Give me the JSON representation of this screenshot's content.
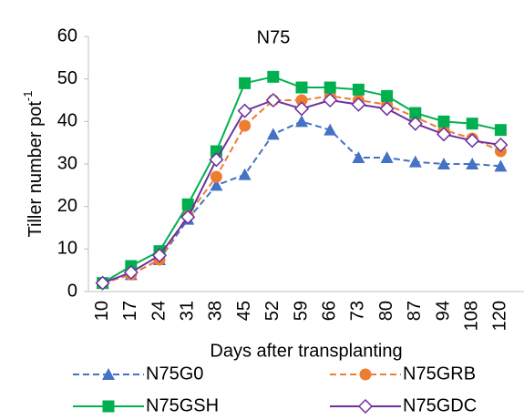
{
  "chart_data": {
    "type": "line",
    "title": "N75",
    "x_label": "Days after transplanting",
    "y_label": "Tiller number pot",
    "y_label_superscript": "-1",
    "categories": [
      "10",
      "17",
      "24",
      "31",
      "38",
      "45",
      "52",
      "59",
      "66",
      "73",
      "80",
      "87",
      "94",
      "108",
      "120"
    ],
    "ylim": [
      0,
      60
    ],
    "yticks": [
      0,
      10,
      20,
      30,
      40,
      50,
      60
    ],
    "grid": false,
    "series": [
      {
        "name": "N75G0",
        "color": "#4472c4",
        "marker": "triangle",
        "dashed": true,
        "values": [
          2,
          4,
          7.5,
          17,
          25,
          27.5,
          37,
          40,
          38,
          31.5,
          31.5,
          30.5,
          30,
          30,
          29.5
        ]
      },
      {
        "name": "N75GRB",
        "color": "#ed7d31",
        "marker": "circle",
        "dashed": true,
        "values": [
          2,
          4,
          7.5,
          18,
          27,
          39,
          45,
          45,
          46,
          45,
          44,
          41,
          38,
          36,
          33
        ]
      },
      {
        "name": "N75GSH",
        "color": "#00b050",
        "marker": "square",
        "dashed": false,
        "values": [
          2,
          6,
          9.5,
          20.5,
          33,
          49,
          50.5,
          48,
          48,
          47.5,
          46,
          42,
          40,
          39.5,
          38
        ]
      },
      {
        "name": "N75GDC",
        "color": "#7030a0",
        "marker": "diamond",
        "dashed": false,
        "values": [
          2,
          4.5,
          8.5,
          17.5,
          31,
          42.5,
          45,
          43,
          45,
          44,
          43,
          39.5,
          37,
          35.5,
          34.5
        ]
      }
    ]
  }
}
